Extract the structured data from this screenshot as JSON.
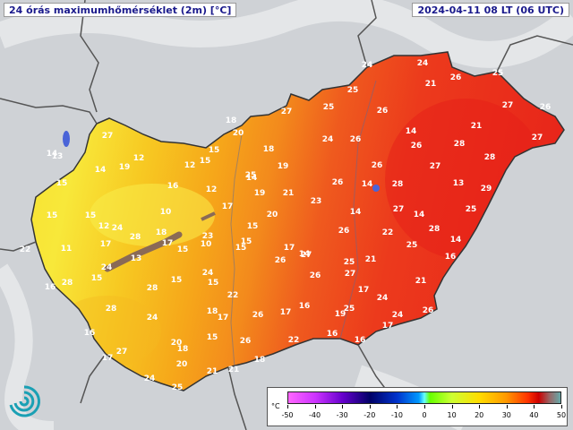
{
  "header": {
    "title": "24 órás maximumhőmérséklet (2m) [°C]",
    "timestamp": "2024-04-11 08 LT (06 UTC)"
  },
  "colors": {
    "background": "#cfd2d6",
    "title_text": "#1a1a8c",
    "label_bg": "#000000",
    "label_text": "#ffffff"
  },
  "legend": {
    "unit": "°C",
    "ticks": [
      "-50",
      "-40",
      "-30",
      "-20",
      "-10",
      "0",
      "10",
      "20",
      "30",
      "40",
      "50"
    ],
    "range": [
      -50,
      50
    ]
  },
  "station_values": [
    "24",
    "24",
    "25",
    "26",
    "25",
    "21",
    "25",
    "27",
    "26",
    "27",
    "26",
    "14",
    "18",
    "21",
    "20",
    "24",
    "26",
    "26",
    "28",
    "27",
    "27",
    "14",
    "13",
    "12",
    "15",
    "12",
    "15",
    "18",
    "19",
    "28",
    "27",
    "19",
    "14",
    "26",
    "25",
    "26",
    "14",
    "13",
    "15",
    "16",
    "12",
    "14",
    "19",
    "23",
    "21",
    "28",
    "29",
    "10",
    "12",
    "17",
    "20",
    "14",
    "15",
    "15",
    "27",
    "14",
    "25",
    "24",
    "26",
    "23",
    "22",
    "15",
    "18",
    "28",
    "28",
    "14",
    "11",
    "17",
    "15",
    "15",
    "17",
    "13",
    "10",
    "15",
    "17",
    "14",
    "16",
    "25",
    "24",
    "25",
    "21",
    "26",
    "27",
    "22",
    "16",
    "15",
    "24",
    "26",
    "28",
    "27",
    "28",
    "15",
    "15",
    "17",
    "21",
    "22",
    "17",
    "16",
    "18",
    "28",
    "25",
    "24",
    "24",
    "19",
    "26",
    "17",
    "24",
    "26",
    "16",
    "16",
    "15",
    "20",
    "26",
    "16",
    "27",
    "17",
    "18",
    "17",
    "20",
    "21",
    "18",
    "24",
    "21",
    "22",
    "25"
  ],
  "logo": "met-service-swirl-logo"
}
